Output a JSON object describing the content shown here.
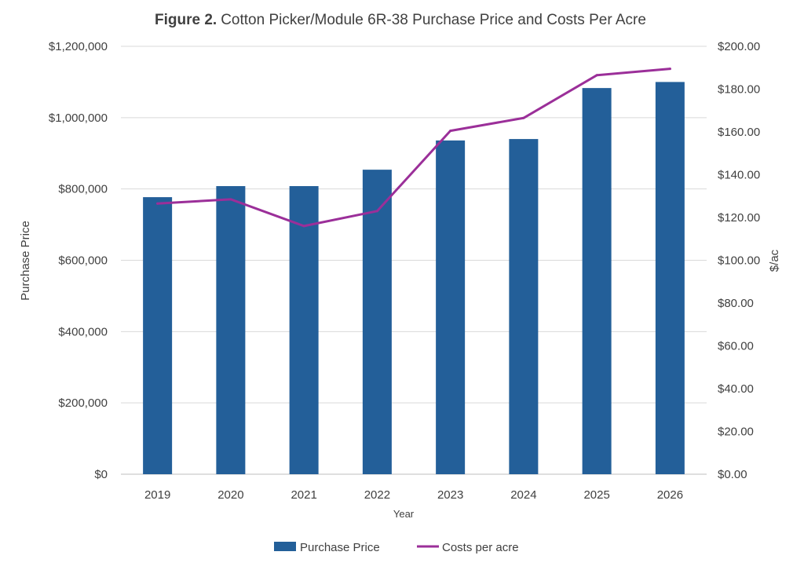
{
  "chart_data": {
    "type": "bar",
    "title_prefix": "Figure 2.",
    "title": "Cotton Picker/Module 6R-38 Purchase Price and Costs Per Acre",
    "xlabel": "Year",
    "ylabel": "Purchase Price",
    "y2label": "$/ac",
    "categories": [
      "2019",
      "2020",
      "2021",
      "2022",
      "2023",
      "2024",
      "2025",
      "2026"
    ],
    "ylim": [
      0,
      1200000
    ],
    "y2lim": [
      0,
      200
    ],
    "y_ticks": [
      {
        "value": 0,
        "label": "$0"
      },
      {
        "value": 200000,
        "label": "$200,000"
      },
      {
        "value": 400000,
        "label": "$400,000"
      },
      {
        "value": 600000,
        "label": "$600,000"
      },
      {
        "value": 800000,
        "label": "$800,000"
      },
      {
        "value": 1000000,
        "label": "$1,000,000"
      },
      {
        "value": 1200000,
        "label": "$1,200,000"
      }
    ],
    "y2_ticks": [
      {
        "value": 0,
        "label": "$0.00"
      },
      {
        "value": 20,
        "label": "$20.00"
      },
      {
        "value": 40,
        "label": "$40.00"
      },
      {
        "value": 60,
        "label": "$60.00"
      },
      {
        "value": 80,
        "label": "$80.00"
      },
      {
        "value": 100,
        "label": "$100.00"
      },
      {
        "value": 120,
        "label": "$120.00"
      },
      {
        "value": 140,
        "label": "$140.00"
      },
      {
        "value": 160,
        "label": "$160.00"
      },
      {
        "value": 180,
        "label": "$180.00"
      },
      {
        "value": 200,
        "label": "$200.00"
      }
    ],
    "grid": true,
    "legend_position": "bottom",
    "series": [
      {
        "name": "Purchase Price",
        "type": "bar",
        "axis": "left",
        "color": "#235F99",
        "values": [
          777000,
          808000,
          808000,
          854000,
          936000,
          940000,
          1083000,
          1100000
        ]
      },
      {
        "name": "Costs per acre",
        "type": "line",
        "axis": "right",
        "color": "#9B2F99",
        "values": [
          126.5,
          128.5,
          116,
          123,
          160.5,
          166.5,
          186.5,
          189.5
        ]
      }
    ]
  }
}
